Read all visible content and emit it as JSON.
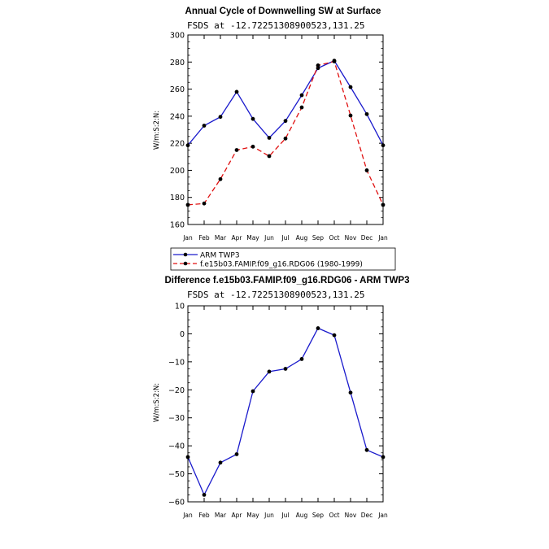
{
  "colors": {
    "obs": "#1a1acc",
    "model": "#e01010",
    "marker": "#000000"
  },
  "legend": {
    "entries": [
      "ARM TWP3",
      "f.e15b03.FAMIP.f09_g16.RDG06 (1980-1999)"
    ]
  },
  "chart_data": [
    {
      "type": "line",
      "title": "Annual Cycle of Downwelling SW at Surface",
      "subtitle": "FSDS at -12.72251308900523,131.25",
      "xlabel": "",
      "ylabel": "W/m:S:2:N:",
      "categories": [
        "Jan",
        "Feb",
        "Mar",
        "Apr",
        "May",
        "Jun",
        "Jul",
        "Aug",
        "Sep",
        "Oct",
        "Nov",
        "Dec",
        "Jan"
      ],
      "ylim": [
        160,
        300
      ],
      "yticks": [
        160,
        180,
        200,
        220,
        240,
        260,
        280,
        300
      ],
      "series": [
        {
          "name": "ARM TWP3",
          "style": "solid",
          "values": [
            218.5,
            233,
            239.5,
            258,
            238,
            224,
            236.5,
            255.5,
            275.5,
            281,
            261.5,
            241.5,
            218.5
          ]
        },
        {
          "name": "f.e15b03.FAMIP.f09_g16.RDG06 (1980-1999)",
          "style": "dashed",
          "values": [
            174.5,
            175.5,
            193.5,
            215,
            217.5,
            210.5,
            223.5,
            246.5,
            277.5,
            280.5,
            240.5,
            200,
            174.5
          ]
        }
      ]
    },
    {
      "type": "line",
      "title": "Difference f.e15b03.FAMIP.f09_g16.RDG06 - ARM TWP3",
      "subtitle": "FSDS at -12.72251308900523,131.25",
      "xlabel": "",
      "ylabel": "W/m:S:2:N:",
      "categories": [
        "Jan",
        "Feb",
        "Mar",
        "Apr",
        "May",
        "Jun",
        "Jul",
        "Aug",
        "Sep",
        "Oct",
        "Nov",
        "Dec",
        "Jan"
      ],
      "ylim": [
        -60,
        10
      ],
      "yticks": [
        -60,
        -50,
        -40,
        -30,
        -20,
        -10,
        0,
        10
      ],
      "series": [
        {
          "name": "Difference",
          "style": "solid",
          "values": [
            -44,
            -57.5,
            -46,
            -43,
            -20.5,
            -13.5,
            -12.5,
            -9,
            2,
            -0.5,
            -21,
            -41.5,
            -44
          ]
        }
      ]
    }
  ]
}
